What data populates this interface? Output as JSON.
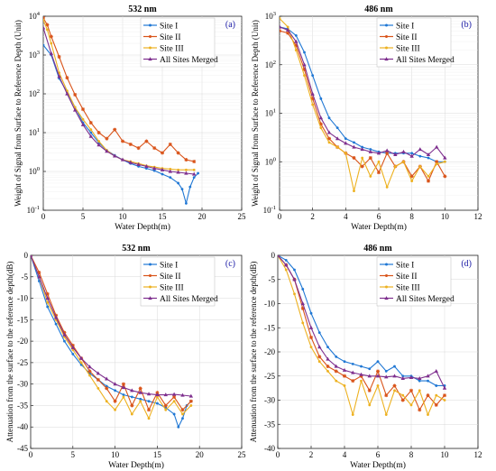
{
  "figure": {
    "panels": [
      "a",
      "b",
      "c",
      "d"
    ]
  },
  "colors": {
    "site1": "#1f77d4",
    "site2": "#d95319",
    "site3": "#edb120",
    "merged": "#7e2f8e",
    "panel_label": "#1a1aa6",
    "grid": "#d9d9d9",
    "axis": "#222222"
  },
  "chart_data": [
    {
      "id": "a",
      "type": "line",
      "title": "532 nm",
      "panel_label": "(a)",
      "xlabel": "Water Depth(m)",
      "ylabel": "Weight of Signal from Surface to Reference Depth (Unit)",
      "xlim": [
        0,
        25
      ],
      "xticks": [
        "0",
        "5",
        "10",
        "15",
        "20",
        "25"
      ],
      "ylim": [
        0.1,
        10000
      ],
      "yscale": "log",
      "yticks_exp": [
        "-1",
        "0",
        "1",
        "2",
        "3",
        "4"
      ],
      "grid": true,
      "legend_position": "top-right",
      "series": [
        {
          "name": "Site I",
          "color_key": "site1",
          "x": [
            0,
            1,
            2,
            3,
            4,
            5,
            6,
            7,
            8,
            9,
            10,
            11,
            12,
            13,
            14,
            15,
            16,
            17,
            17.5,
            18,
            18.5,
            19,
            19.5
          ],
          "y": [
            1800,
            1000,
            250,
            110,
            45,
            18,
            10,
            5.5,
            3.5,
            2.6,
            2.0,
            1.6,
            1.35,
            1.2,
            1.05,
            0.85,
            0.7,
            0.5,
            0.35,
            0.15,
            0.4,
            0.7,
            0.9
          ]
        },
        {
          "name": "Site II",
          "color_key": "site2",
          "x": [
            0,
            0.5,
            1,
            2,
            3,
            4,
            5,
            6,
            7,
            8,
            9,
            10,
            11,
            12,
            13,
            14,
            15,
            16,
            17,
            18,
            19
          ],
          "y": [
            9000,
            6000,
            3000,
            900,
            260,
            95,
            40,
            18,
            10,
            7,
            12,
            6,
            5,
            4,
            6,
            4,
            3,
            5,
            3,
            2,
            1.8
          ]
        },
        {
          "name": "Site III",
          "color_key": "site3",
          "x": [
            0,
            0.5,
            1,
            2,
            3,
            4,
            5,
            6,
            7,
            8,
            9,
            10,
            11,
            12,
            13,
            14,
            15,
            16,
            17,
            18,
            19
          ],
          "y": [
            8000,
            4500,
            2000,
            350,
            120,
            45,
            22,
            12,
            6,
            3.5,
            2.5,
            2.0,
            1.8,
            1.6,
            1.4,
            1.3,
            1.2,
            1.15,
            1.1,
            1.1,
            1.1
          ]
        },
        {
          "name": "All Sites Merged",
          "color_key": "merged",
          "x": [
            0,
            1,
            2,
            3,
            4,
            5,
            6,
            7,
            8,
            9,
            10,
            11,
            12,
            13,
            14,
            15,
            16,
            17,
            18,
            19
          ],
          "y": [
            5000,
            1100,
            280,
            100,
            38,
            16,
            8,
            4.8,
            3.3,
            2.5,
            2.0,
            1.7,
            1.5,
            1.35,
            1.2,
            1.1,
            1.0,
            0.95,
            0.9,
            0.85
          ]
        }
      ]
    },
    {
      "id": "b",
      "type": "line",
      "title": "486 nm",
      "panel_label": "(b)",
      "xlabel": "Water Depth(m)",
      "ylabel": "Weight of Signal from Surface to Reference Depth (Unit)",
      "xlim": [
        0,
        12
      ],
      "xticks": [
        "0",
        "2",
        "4",
        "6",
        "8",
        "10",
        "12"
      ],
      "ylim": [
        0.1,
        1000
      ],
      "yscale": "log",
      "yticks_exp": [
        "-1",
        "0",
        "1",
        "2",
        "3"
      ],
      "grid": true,
      "legend_position": "top-right",
      "series": [
        {
          "name": "Site I",
          "color_key": "site1",
          "x": [
            0,
            0.5,
            1,
            1.5,
            2,
            2.5,
            3,
            3.5,
            4,
            4.5,
            5,
            5.5,
            6,
            6.5,
            7,
            7.5,
            8,
            8.5,
            9,
            9.5,
            10
          ],
          "y": [
            600,
            550,
            400,
            180,
            60,
            20,
            8,
            5,
            3,
            2.5,
            2,
            1.8,
            1.6,
            1.5,
            1.5,
            1.5,
            1.5,
            1.3,
            1.2,
            1.0,
            1.0
          ]
        },
        {
          "name": "Site II",
          "color_key": "site2",
          "x": [
            0,
            0.5,
            1,
            1.5,
            2,
            2.5,
            3,
            3.5,
            4,
            4.5,
            5,
            5.5,
            6,
            6.5,
            7,
            7.5,
            8,
            8.5,
            9,
            9.5,
            10
          ],
          "y": [
            500,
            450,
            250,
            80,
            20,
            6,
            3,
            2,
            1.5,
            1.2,
            0.8,
            1.2,
            0.6,
            1.5,
            0.8,
            1.0,
            0.5,
            0.8,
            0.4,
            1.0,
            0.5
          ]
        },
        {
          "name": "Site III",
          "color_key": "site3",
          "x": [
            0,
            0.5,
            1,
            1.5,
            2,
            2.5,
            3,
            3.5,
            4,
            4.5,
            5,
            5.5,
            6,
            6.5,
            7,
            7.5,
            8,
            8.5,
            9,
            9.5,
            10
          ],
          "y": [
            900,
            600,
            200,
            60,
            15,
            5,
            2.5,
            2,
            1.5,
            0.25,
            1.2,
            0.5,
            1.0,
            0.3,
            0.8,
            1.0,
            0.4,
            0.8,
            0.5,
            0.9,
            1.0
          ]
        },
        {
          "name": "All Sites Merged",
          "color_key": "merged",
          "x": [
            0,
            0.5,
            1,
            1.5,
            2,
            2.5,
            3,
            3.5,
            4,
            4.5,
            5,
            5.5,
            6,
            6.5,
            7,
            7.5,
            8,
            8.5,
            9,
            9.5,
            10
          ],
          "y": [
            600,
            520,
            300,
            100,
            25,
            8,
            4,
            3,
            2.4,
            2.0,
            1.8,
            1.6,
            1.5,
            1.7,
            1.4,
            1.6,
            1.3,
            1.8,
            1.4,
            2.0,
            1.2
          ]
        }
      ]
    },
    {
      "id": "c",
      "type": "line",
      "title": "532 nm",
      "panel_label": "(c)",
      "xlabel": "Water Depth(m)",
      "ylabel": "Attenuation from the surface to the reference depth(dB)",
      "xlim": [
        0,
        25
      ],
      "xticks": [
        "0",
        "5",
        "10",
        "15",
        "20",
        "25"
      ],
      "ylim": [
        -45,
        0
      ],
      "yticks": [
        "0",
        "-5",
        "-10",
        "-15",
        "-20",
        "-25",
        "-30",
        "-35",
        "-40",
        "-45"
      ],
      "grid": true,
      "legend_position": "top-right",
      "series": [
        {
          "name": "Site I",
          "color_key": "site1",
          "x": [
            0,
            1,
            2,
            3,
            4,
            5,
            6,
            7,
            8,
            9,
            10,
            11,
            12,
            13,
            14,
            15,
            16,
            17,
            17.5,
            18,
            18.5,
            19
          ],
          "y": [
            0,
            -6,
            -12,
            -16,
            -20,
            -23,
            -25.5,
            -27.5,
            -29,
            -30.5,
            -31.5,
            -32.5,
            -33,
            -33.5,
            -34,
            -34.5,
            -35.5,
            -37,
            -40,
            -38,
            -35,
            -34
          ]
        },
        {
          "name": "Site II",
          "color_key": "site2",
          "x": [
            0,
            1,
            2,
            3,
            4,
            5,
            6,
            7,
            8,
            9,
            10,
            11,
            12,
            13,
            14,
            15,
            16,
            17,
            18,
            19
          ],
          "y": [
            0,
            -4,
            -9,
            -14,
            -18,
            -21,
            -24,
            -27,
            -29,
            -31,
            -34,
            -30,
            -35,
            -31,
            -36,
            -32,
            -35,
            -33,
            -36,
            -34
          ]
        },
        {
          "name": "Site III",
          "color_key": "site3",
          "x": [
            0,
            1,
            2,
            3,
            4,
            5,
            6,
            7,
            8,
            9,
            10,
            11,
            12,
            13,
            14,
            15,
            16,
            17,
            18,
            19
          ],
          "y": [
            0,
            -5,
            -11,
            -15,
            -19,
            -22,
            -25,
            -28,
            -31,
            -34,
            -36,
            -33,
            -37,
            -34,
            -38,
            -33,
            -36,
            -34,
            -37,
            -35
          ]
        },
        {
          "name": "All Sites Merged",
          "color_key": "merged",
          "x": [
            0,
            1,
            2,
            3,
            4,
            5,
            6,
            7,
            8,
            9,
            10,
            11,
            12,
            13,
            14,
            15,
            16,
            17,
            18,
            19
          ],
          "y": [
            0,
            -5,
            -10,
            -14.5,
            -18.5,
            -21.5,
            -24,
            -26,
            -27.5,
            -28.8,
            -30,
            -30.8,
            -31.5,
            -32,
            -32.3,
            -32.5,
            -32.5,
            -32.4,
            -32.6,
            -32.8
          ]
        }
      ]
    },
    {
      "id": "d",
      "type": "line",
      "title": "486 nm",
      "panel_label": "(d)",
      "xlabel": "Water Depth(m)",
      "ylabel": "Attenuation from the surface to the reference depth(dB)",
      "xlim": [
        0,
        12
      ],
      "xticks": [
        "0",
        "2",
        "4",
        "6",
        "8",
        "10",
        "12"
      ],
      "ylim": [
        -40,
        0
      ],
      "yticks": [
        "0",
        "-5",
        "-10",
        "-15",
        "-20",
        "-25",
        "-30",
        "-35",
        "-40"
      ],
      "grid": true,
      "legend_position": "top-right",
      "series": [
        {
          "name": "Site I",
          "color_key": "site1",
          "x": [
            0,
            0.5,
            1,
            1.5,
            2,
            2.5,
            3,
            3.5,
            4,
            4.5,
            5,
            5.5,
            6,
            6.5,
            7,
            7.5,
            8,
            8.5,
            9,
            9.5,
            10
          ],
          "y": [
            0,
            -1,
            -3,
            -7,
            -12,
            -16,
            -19,
            -21,
            -22,
            -22.5,
            -23,
            -23.5,
            -22,
            -24,
            -23,
            -25,
            -25,
            -26,
            -26,
            -27,
            -27
          ]
        },
        {
          "name": "Site II",
          "color_key": "site2",
          "x": [
            0,
            0.5,
            1,
            1.5,
            2,
            2.5,
            3,
            3.5,
            4,
            4.5,
            5,
            5.5,
            6,
            6.5,
            7,
            7.5,
            8,
            8.5,
            9,
            9.5,
            10
          ],
          "y": [
            0,
            -2,
            -5,
            -11,
            -17,
            -21,
            -23,
            -24,
            -25,
            -26,
            -25,
            -28,
            -24,
            -29,
            -27,
            -30,
            -28,
            -32,
            -29,
            -31,
            -29
          ]
        },
        {
          "name": "Site III",
          "color_key": "site3",
          "x": [
            0,
            0.5,
            1,
            1.5,
            2,
            2.5,
            3,
            3.5,
            4,
            4.5,
            5,
            5.5,
            6,
            6.5,
            7,
            7.5,
            8,
            8.5,
            9,
            9.5,
            10
          ],
          "y": [
            0,
            -3,
            -8,
            -14,
            -19,
            -22,
            -24,
            -26,
            -27,
            -33,
            -26,
            -31,
            -27,
            -33,
            -28,
            -29,
            -31,
            -28,
            -33,
            -29,
            -30
          ]
        },
        {
          "name": "All Sites Merged",
          "color_key": "merged",
          "x": [
            0,
            0.5,
            1,
            1.5,
            2,
            2.5,
            3,
            3.5,
            4,
            4.5,
            5,
            5.5,
            6,
            6.5,
            7,
            7.5,
            8,
            8.5,
            9,
            9.5,
            10
          ],
          "y": [
            0,
            -2,
            -5,
            -10,
            -15,
            -19,
            -21.5,
            -23,
            -23.8,
            -24.3,
            -24.7,
            -25,
            -25,
            -25.2,
            -25,
            -25.5,
            -25.3,
            -25.5,
            -25,
            -24,
            -27.5
          ]
        }
      ]
    }
  ]
}
